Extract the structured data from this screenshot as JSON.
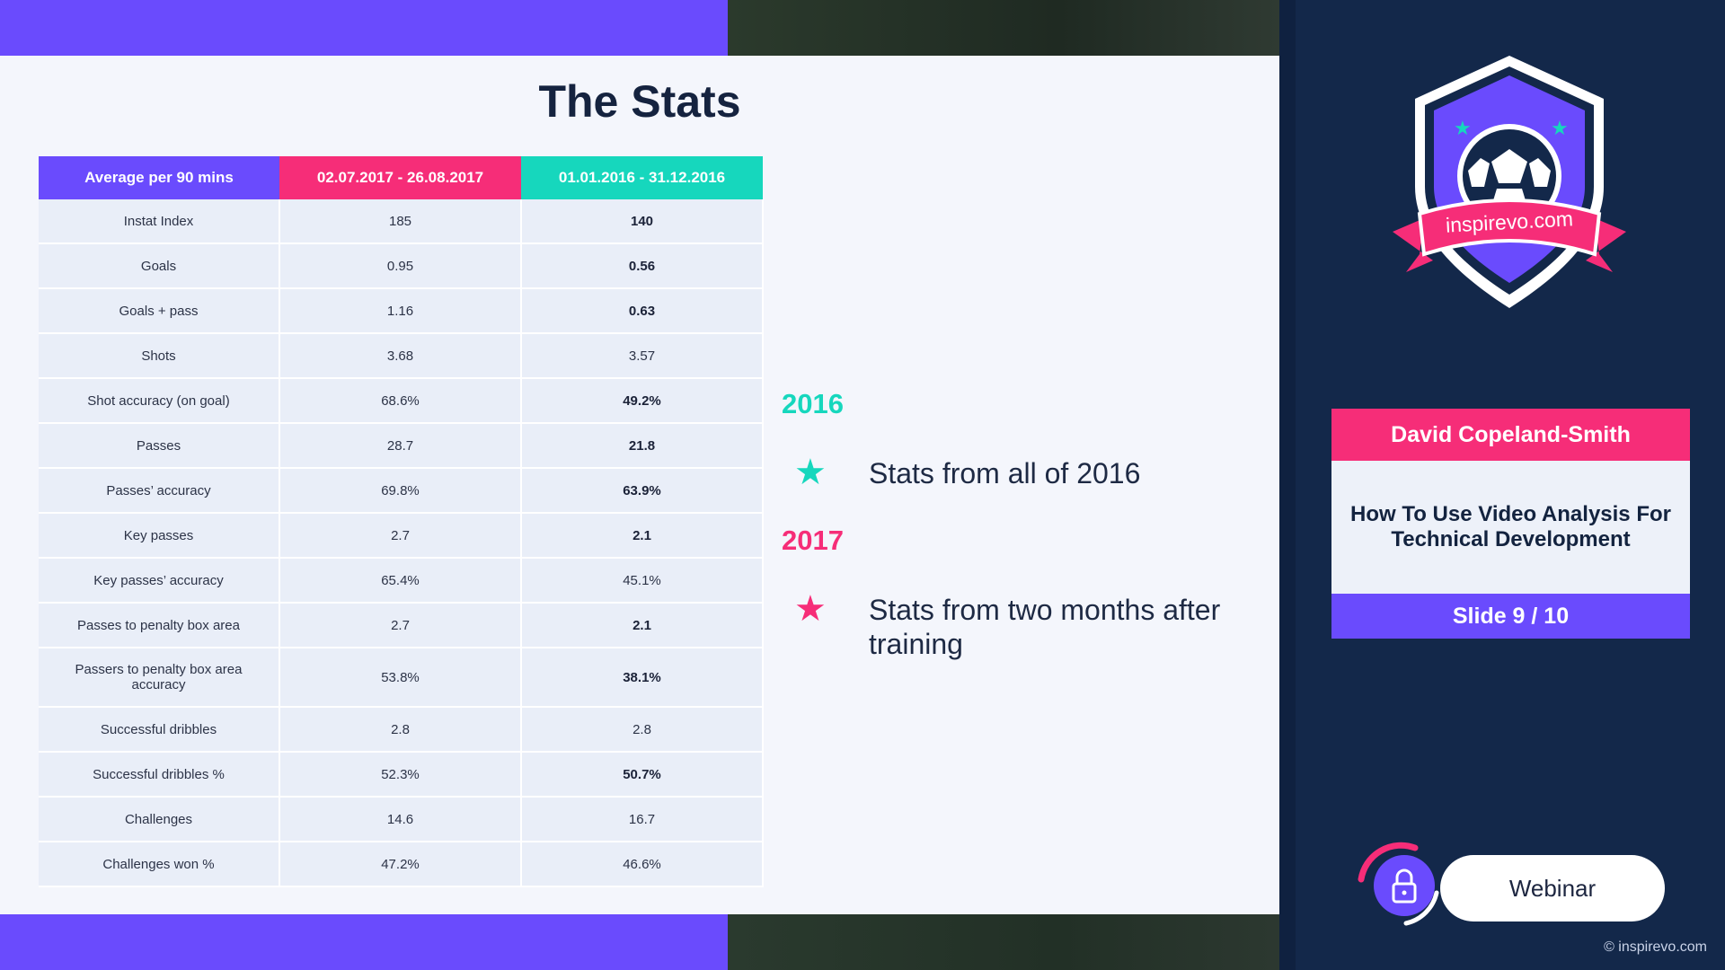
{
  "slide": {
    "title": "The Stats"
  },
  "table": {
    "headers": [
      "Average per 90 mins",
      "02.07.2017 - 26.08.2017",
      "01.01.2016 - 31.12.2016"
    ],
    "rows": [
      {
        "label": "Instat Index",
        "v2017": "185",
        "v2016": "140",
        "bold2016": true
      },
      {
        "label": "Goals",
        "v2017": "0.95",
        "v2016": "0.56",
        "bold2016": true
      },
      {
        "label": "Goals + pass",
        "v2017": "1.16",
        "v2016": "0.63",
        "bold2016": true
      },
      {
        "label": "Shots",
        "v2017": "3.68",
        "v2016": "3.57",
        "bold2016": false
      },
      {
        "label": "Shot accuracy (on goal)",
        "v2017": "68.6%",
        "v2016": "49.2%",
        "bold2016": true
      },
      {
        "label": "Passes",
        "v2017": "28.7",
        "v2016": "21.8",
        "bold2016": true
      },
      {
        "label": "Passes’ accuracy",
        "v2017": "69.8%",
        "v2016": "63.9%",
        "bold2016": true
      },
      {
        "label": "Key passes",
        "v2017": "2.7",
        "v2016": "2.1",
        "bold2016": true
      },
      {
        "label": "Key passes’ accuracy",
        "v2017": "65.4%",
        "v2016": "45.1%",
        "bold2016": false
      },
      {
        "label": "Passes to penalty box area",
        "v2017": "2.7",
        "v2016": "2.1",
        "bold2016": true
      },
      {
        "label": "Passers to penalty box area accuracy",
        "v2017": "53.8%",
        "v2016": "38.1%",
        "bold2016": true
      },
      {
        "label": "Successful dribbles",
        "v2017": "2.8",
        "v2016": "2.8",
        "bold2016": false
      },
      {
        "label": "Successful dribbles %",
        "v2017": "52.3%",
        "v2016": "50.7%",
        "bold2016": true
      },
      {
        "label": "Challenges",
        "v2017": "14.6",
        "v2016": "16.7",
        "bold2016": false
      },
      {
        "label": "Challenges won %",
        "v2017": "47.2%",
        "v2016": "46.6%",
        "bold2016": false
      }
    ]
  },
  "legend": {
    "year1": "2016",
    "text1": "Stats from all of 2016",
    "year2": "2017",
    "text2": "Stats from two months after training",
    "star_icon": "star-icon"
  },
  "sidebar": {
    "badge_text": "inspirevo.com",
    "presenter": "David Copeland-Smith",
    "talk_title": "How To Use Video Analysis For Technical Development",
    "slide_counter": "Slide 9 / 10",
    "webinar_label": "Webinar",
    "copyright": "© inspirevo.com"
  },
  "colors": {
    "purple": "#6a4bfd",
    "pink": "#f62d78",
    "teal": "#16d7bd",
    "navy": "#13284a"
  }
}
